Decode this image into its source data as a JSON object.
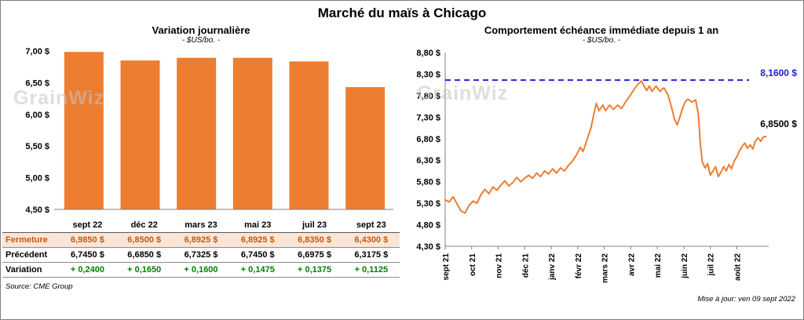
{
  "page": {
    "title": "Marché du maïs à Chicago",
    "source": "Source: CME Group",
    "updated": "Mise à jour: ven 09 sept 2022",
    "watermark": "GrainWiz"
  },
  "colors": {
    "bar": "#ED7D31",
    "line": "#ED7D31",
    "reference": "#2222CC",
    "axis": "#808080",
    "fermeture_bg": "#FBE5D6",
    "fermeture_text": "#C55A11",
    "variation_text": "#008000"
  },
  "chart_data": [
    {
      "type": "bar",
      "title": "Variation  journalière",
      "subtitle": "- $US/bo. -",
      "categories": [
        "sept 22",
        "déc 22",
        "mars 23",
        "mai 23",
        "juil 23",
        "sept 23"
      ],
      "values": [
        6.985,
        6.85,
        6.8925,
        6.8925,
        6.835,
        6.43
      ],
      "ylim": [
        4.5,
        7.0
      ],
      "ytick_step": 0.5,
      "ytick_labels": [
        "7,00 $",
        "6,50 $",
        "6,00 $",
        "5,50 $",
        "5,00 $",
        "4,50 $"
      ],
      "grid": false,
      "legend": false
    },
    {
      "type": "line",
      "title": "Comportement  échéance  immédiate  depuis 1 an",
      "subtitle": "- $US/bo. -",
      "x_labels": [
        "sept 21",
        "oct 21",
        "nov 21",
        "déc 21",
        "janv 22",
        "févr 22",
        "mars 22",
        "avr 22",
        "mai 22",
        "juin 22",
        "juil 22",
        "août 22"
      ],
      "ylim": [
        4.3,
        8.8
      ],
      "ytick_labels": [
        "8,80 $",
        "8,30 $",
        "7,80 $",
        "7,30 $",
        "6,80 $",
        "6,30 $",
        "5,80 $",
        "5,30 $",
        "4,80 $",
        "4,30 $"
      ],
      "reference_line": {
        "value": 8.16,
        "label": "8,1600 $"
      },
      "last_value": 6.85,
      "last_label": "6,8500 $",
      "grid": false,
      "legend": false,
      "points": [
        [
          0,
          5.38
        ],
        [
          0.15,
          5.33
        ],
        [
          0.3,
          5.45
        ],
        [
          0.45,
          5.28
        ],
        [
          0.6,
          5.12
        ],
        [
          0.75,
          5.07
        ],
        [
          0.9,
          5.25
        ],
        [
          1.05,
          5.35
        ],
        [
          1.2,
          5.3
        ],
        [
          1.35,
          5.5
        ],
        [
          1.5,
          5.62
        ],
        [
          1.65,
          5.52
        ],
        [
          1.8,
          5.68
        ],
        [
          1.95,
          5.6
        ],
        [
          2.1,
          5.72
        ],
        [
          2.25,
          5.82
        ],
        [
          2.4,
          5.7
        ],
        [
          2.55,
          5.78
        ],
        [
          2.7,
          5.9
        ],
        [
          2.85,
          5.8
        ],
        [
          3,
          5.88
        ],
        [
          3.15,
          5.95
        ],
        [
          3.3,
          5.88
        ],
        [
          3.45,
          6.0
        ],
        [
          3.6,
          5.92
        ],
        [
          3.75,
          6.05
        ],
        [
          3.9,
          5.98
        ],
        [
          4.05,
          6.1
        ],
        [
          4.2,
          6.0
        ],
        [
          4.35,
          6.12
        ],
        [
          4.5,
          6.05
        ],
        [
          4.65,
          6.18
        ],
        [
          4.8,
          6.28
        ],
        [
          4.95,
          6.42
        ],
        [
          5.1,
          6.6
        ],
        [
          5.2,
          6.5
        ],
        [
          5.35,
          6.78
        ],
        [
          5.5,
          7.05
        ],
        [
          5.6,
          7.35
        ],
        [
          5.7,
          7.62
        ],
        [
          5.8,
          7.45
        ],
        [
          5.95,
          7.58
        ],
        [
          6.05,
          7.45
        ],
        [
          6.2,
          7.58
        ],
        [
          6.35,
          7.48
        ],
        [
          6.5,
          7.58
        ],
        [
          6.65,
          7.5
        ],
        [
          6.8,
          7.65
        ],
        [
          6.95,
          7.78
        ],
        [
          7.1,
          7.92
        ],
        [
          7.25,
          8.05
        ],
        [
          7.4,
          8.14
        ],
        [
          7.5,
          8.02
        ],
        [
          7.6,
          7.92
        ],
        [
          7.7,
          8.02
        ],
        [
          7.8,
          7.9
        ],
        [
          7.95,
          8.02
        ],
        [
          8.1,
          7.9
        ],
        [
          8.25,
          7.98
        ],
        [
          8.4,
          7.82
        ],
        [
          8.55,
          7.5
        ],
        [
          8.65,
          7.25
        ],
        [
          8.75,
          7.12
        ],
        [
          8.85,
          7.3
        ],
        [
          8.95,
          7.5
        ],
        [
          9.05,
          7.65
        ],
        [
          9.15,
          7.72
        ],
        [
          9.3,
          7.65
        ],
        [
          9.45,
          7.7
        ],
        [
          9.55,
          7.35
        ],
        [
          9.62,
          6.7
        ],
        [
          9.7,
          6.25
        ],
        [
          9.8,
          6.12
        ],
        [
          9.9,
          6.22
        ],
        [
          10,
          5.95
        ],
        [
          10.1,
          6.05
        ],
        [
          10.2,
          6.15
        ],
        [
          10.3,
          5.92
        ],
        [
          10.4,
          6.02
        ],
        [
          10.5,
          6.15
        ],
        [
          10.6,
          6.05
        ],
        [
          10.7,
          6.2
        ],
        [
          10.8,
          6.1
        ],
        [
          10.9,
          6.28
        ],
        [
          11,
          6.38
        ],
        [
          11.1,
          6.52
        ],
        [
          11.2,
          6.62
        ],
        [
          11.3,
          6.7
        ],
        [
          11.4,
          6.58
        ],
        [
          11.5,
          6.66
        ],
        [
          11.6,
          6.56
        ],
        [
          11.7,
          6.74
        ],
        [
          11.8,
          6.82
        ],
        [
          11.9,
          6.74
        ],
        [
          12,
          6.84
        ],
        [
          12.1,
          6.85
        ]
      ]
    }
  ],
  "table": {
    "col_headers": [
      "sept 22",
      "déc 22",
      "mars 23",
      "mai 23",
      "juil 23",
      "sept 23"
    ],
    "rows": [
      {
        "label": "Fermeture",
        "values": [
          "6,9850  $",
          "6,8500  $",
          "6,8925  $",
          "6,8925  $",
          "6,8350  $",
          "6,4300  $"
        ]
      },
      {
        "label": "Précédent",
        "values": [
          "6,7450  $",
          "6,6850  $",
          "6,7325  $",
          "6,7450  $",
          "6,6975  $",
          "6,3175  $"
        ]
      },
      {
        "label": "Variation",
        "values": [
          "+ 0,2400",
          "+ 0,1650",
          "+ 0,1600",
          "+ 0,1475",
          "+ 0,1375",
          "+ 0,1125"
        ]
      }
    ]
  }
}
